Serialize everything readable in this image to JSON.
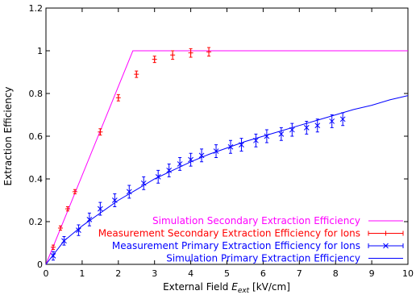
{
  "chart_data": {
    "type": "line",
    "title": "",
    "xlabel_prefix": "External Field ",
    "xlabel_var": "E",
    "xlabel_sub": "ext",
    "xlabel_suffix": " [kV/cm]",
    "ylabel": "Extraction Efficiency",
    "xlim": [
      0,
      10
    ],
    "ylim": [
      0,
      1.2
    ],
    "x_ticks": [
      "0",
      "1",
      "2",
      "3",
      "4",
      "5",
      "6",
      "7",
      "8",
      "9",
      "10"
    ],
    "y_ticks": [
      "0",
      "0.2",
      "0.4",
      "0.6",
      "0.8",
      "1",
      "1.2"
    ],
    "legend_position": "bottom-right",
    "series": [
      {
        "name": "Simulation Secondary Extraction Efficiency",
        "kind": "line",
        "color": "#ff00ff",
        "x": [
          0,
          2.4,
          10
        ],
        "y": [
          0,
          1.0,
          1.0
        ]
      },
      {
        "name": "Measurement Secondary Extraction Efficiency for Ions",
        "kind": "points_errorbar",
        "marker": "plus",
        "color": "#ff0000",
        "x": [
          0.2,
          0.4,
          0.6,
          0.8,
          1.5,
          2.0,
          2.5,
          3.0,
          3.5,
          4.0,
          4.5
        ],
        "y": [
          0.08,
          0.17,
          0.26,
          0.34,
          0.62,
          0.78,
          0.89,
          0.96,
          0.98,
          0.99,
          0.995
        ],
        "err": [
          0.01,
          0.01,
          0.01,
          0.01,
          0.015,
          0.015,
          0.015,
          0.015,
          0.02,
          0.02,
          0.02
        ]
      },
      {
        "name": "Measurement Primary Extraction Efficiency for Ions",
        "kind": "points_errorbar",
        "marker": "cross",
        "color": "#0000ff",
        "x": [
          0.2,
          0.5,
          0.9,
          1.2,
          1.5,
          1.9,
          2.3,
          2.7,
          3.1,
          3.4,
          3.7,
          4.0,
          4.3,
          4.7,
          5.1,
          5.4,
          5.8,
          6.1,
          6.5,
          6.8,
          7.2,
          7.5,
          7.9,
          8.2
        ],
        "y": [
          0.04,
          0.11,
          0.16,
          0.21,
          0.26,
          0.3,
          0.34,
          0.38,
          0.41,
          0.44,
          0.47,
          0.49,
          0.51,
          0.53,
          0.55,
          0.56,
          0.58,
          0.6,
          0.61,
          0.63,
          0.64,
          0.65,
          0.67,
          0.68
        ],
        "err": [
          0.02,
          0.02,
          0.025,
          0.03,
          0.03,
          0.03,
          0.03,
          0.03,
          0.03,
          0.03,
          0.03,
          0.03,
          0.03,
          0.03,
          0.03,
          0.03,
          0.03,
          0.03,
          0.03,
          0.03,
          0.03,
          0.03,
          0.03,
          0.03
        ]
      },
      {
        "name": "Simulation Primary Extraction Efficiency",
        "kind": "line",
        "color": "#0000ff",
        "x": [
          0,
          0.5,
          1,
          1.5,
          2,
          2.5,
          3,
          3.5,
          4,
          4.5,
          5,
          5.5,
          6,
          6.5,
          7,
          7.5,
          8,
          8.5,
          9,
          9.5,
          10
        ],
        "y": [
          0,
          0.11,
          0.18,
          0.24,
          0.3,
          0.35,
          0.4,
          0.44,
          0.48,
          0.515,
          0.545,
          0.575,
          0.6,
          0.625,
          0.65,
          0.675,
          0.7,
          0.725,
          0.745,
          0.77,
          0.79
        ]
      }
    ]
  }
}
